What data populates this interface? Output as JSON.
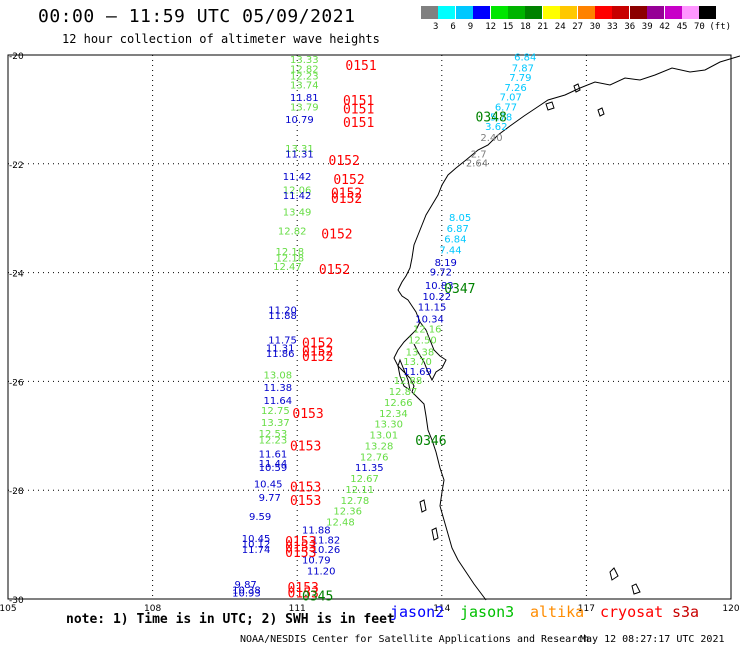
{
  "title": "00:00 – 11:59 UTC 05/09/2021",
  "subtitle": "12 hour collection of altimeter wave heights",
  "scale": {
    "colors": [
      "#808080",
      "#00ffff",
      "#00c8ff",
      "#0000ff",
      "#00e600",
      "#00b400",
      "#008200",
      "#ffff00",
      "#ffc800",
      "#ff8200",
      "#ff0000",
      "#c80000",
      "#8c0000",
      "#960096",
      "#c800c8",
      "#ff96ff",
      "#000000"
    ],
    "labels": [
      "3",
      "6",
      "9",
      "12",
      "15",
      "18",
      "21",
      "24",
      "27",
      "30",
      "33",
      "36",
      "39",
      "42",
      "45",
      "70",
      "(ft)"
    ]
  },
  "axes": {
    "lat_labels": [
      "-20",
      "-22",
      "-24",
      "-26",
      "-28",
      "-30"
    ],
    "lon_labels": [
      "105",
      "108",
      "111",
      "114",
      "117",
      "120"
    ]
  },
  "satellites": {
    "jason2": {
      "name": "jason2",
      "color": "#0000ff"
    },
    "jason3": {
      "name": "jason3",
      "color": "#00c000"
    },
    "altika": {
      "name": "altika",
      "color": "#ff8c00"
    },
    "cryosat": {
      "name": "cryosat",
      "color": "#ff0000"
    },
    "s3a": {
      "name": "s3a",
      "color": "#c80000"
    }
  },
  "note": "note: 1) Time is in UTC; 2) SWH is in feet",
  "footer_left": "NOAA/NESDIS Center for Satellite Applications and Research",
  "footer_right": "May 12 08:27:17 UTC 2021",
  "track_labels": [
    {
      "text": "0151",
      "color": "#ff0000",
      "lon": 112.0,
      "lat": -20.2
    },
    {
      "text": "0151",
      "color": "#ff0000",
      "lon": 111.95,
      "lat": -20.85
    },
    {
      "text": "0151",
      "color": "#ff0000",
      "lon": 111.95,
      "lat": -21.0
    },
    {
      "text": "0151",
      "color": "#ff0000",
      "lon": 111.95,
      "lat": -21.25
    },
    {
      "text": "0152",
      "color": "#ff0000",
      "lon": 111.65,
      "lat": -21.95
    },
    {
      "text": "0152",
      "color": "#ff0000",
      "lon": 111.75,
      "lat": -22.3
    },
    {
      "text": "0152",
      "color": "#ff0000",
      "lon": 111.7,
      "lat": -22.55
    },
    {
      "text": "0152",
      "color": "#ff0000",
      "lon": 111.7,
      "lat": -22.65
    },
    {
      "text": "0152",
      "color": "#ff0000",
      "lon": 111.5,
      "lat": -23.3
    },
    {
      "text": "0152",
      "color": "#ff0000",
      "lon": 111.45,
      "lat": -23.95
    },
    {
      "text": "0152",
      "color": "#ff0000",
      "lon": 111.1,
      "lat": -25.3
    },
    {
      "text": "0152",
      "color": "#ff0000",
      "lon": 111.1,
      "lat": -25.45
    },
    {
      "text": "0152",
      "color": "#ff0000",
      "lon": 111.1,
      "lat": -25.55
    },
    {
      "text": "0153",
      "color": "#ff0000",
      "lon": 110.9,
      "lat": -26.6
    },
    {
      "text": "0153",
      "color": "#ff0000",
      "lon": 110.85,
      "lat": -27.2
    },
    {
      "text": "0153",
      "color": "#ff0000",
      "lon": 110.85,
      "lat": -27.95
    },
    {
      "text": "0153",
      "color": "#ff0000",
      "lon": 110.85,
      "lat": -28.2
    },
    {
      "text": "0153",
      "color": "#ff0000",
      "lon": 110.75,
      "lat": -28.95
    },
    {
      "text": "0153",
      "color": "#ff0000",
      "lon": 110.75,
      "lat": -29.05
    },
    {
      "text": "0153",
      "color": "#ff0000",
      "lon": 110.75,
      "lat": -29.15
    },
    {
      "text": "0153",
      "color": "#ff0000",
      "lon": 110.8,
      "lat": -29.8
    },
    {
      "text": "0153",
      "color": "#ff0000",
      "lon": 110.8,
      "lat": -29.9
    },
    {
      "text": "0348",
      "color": "#008200",
      "lon": 114.7,
      "lat": -21.15
    },
    {
      "text": "0347",
      "color": "#008200",
      "lon": 114.05,
      "lat": -24.3
    },
    {
      "text": "0346",
      "color": "#008200",
      "lon": 113.45,
      "lat": -27.1
    },
    {
      "text": "0345",
      "color": "#008200",
      "lon": 111.1,
      "lat": -29.95
    }
  ],
  "wave_values": [
    {
      "text": "6.84",
      "color": "#00c8ff",
      "lon": 115.5,
      "lat": -20.1
    },
    {
      "text": "7.87",
      "color": "#00c8ff",
      "lon": 115.45,
      "lat": -20.3
    },
    {
      "text": "7.79",
      "color": "#00c8ff",
      "lon": 115.4,
      "lat": -20.48
    },
    {
      "text": "7.26",
      "color": "#00c8ff",
      "lon": 115.3,
      "lat": -20.66
    },
    {
      "text": "7.07",
      "color": "#00c8ff",
      "lon": 115.2,
      "lat": -20.84
    },
    {
      "text": "6.77",
      "color": "#00c8ff",
      "lon": 115.1,
      "lat": -21.02
    },
    {
      "text": "5.78",
      "color": "#00c8ff",
      "lon": 115.0,
      "lat": -21.2
    },
    {
      "text": "3.62",
      "color": "#00c8ff",
      "lon": 114.9,
      "lat": -21.38
    },
    {
      "text": "2.40",
      "color": "#808080",
      "lon": 114.8,
      "lat": -21.58
    },
    {
      "text": "2.7",
      "color": "#808080",
      "lon": 114.6,
      "lat": -21.88
    },
    {
      "text": "2.64",
      "color": "#808080",
      "lon": 114.5,
      "lat": -22.05
    },
    {
      "text": "13.33",
      "color": "#66dd44",
      "lon": 110.85,
      "lat": -20.15
    },
    {
      "text": "12.82",
      "color": "#66dd44",
      "lon": 110.85,
      "lat": -20.32
    },
    {
      "text": "12.23",
      "color": "#66dd44",
      "lon": 110.85,
      "lat": -20.45
    },
    {
      "text": "13.74",
      "color": "#66dd44",
      "lon": 110.85,
      "lat": -20.62
    },
    {
      "text": "11.81",
      "color": "#0000cc",
      "lon": 110.85,
      "lat": -20.85
    },
    {
      "text": "13.79",
      "color": "#66dd44",
      "lon": 110.85,
      "lat": -21.02
    },
    {
      "text": "10.79",
      "color": "#0000cc",
      "lon": 110.75,
      "lat": -21.25
    },
    {
      "text": "13.31",
      "color": "#66dd44",
      "lon": 110.75,
      "lat": -21.78
    },
    {
      "text": "11.31",
      "color": "#0000cc",
      "lon": 110.75,
      "lat": -21.88
    },
    {
      "text": "11.42",
      "color": "#0000cc",
      "lon": 110.7,
      "lat": -22.3
    },
    {
      "text": "12.06",
      "color": "#66dd44",
      "lon": 110.7,
      "lat": -22.55
    },
    {
      "text": "11.42",
      "color": "#0000cc",
      "lon": 110.7,
      "lat": -22.65
    },
    {
      "text": "13.49",
      "color": "#66dd44",
      "lon": 110.7,
      "lat": -22.95
    },
    {
      "text": "12.82",
      "color": "#66dd44",
      "lon": 110.6,
      "lat": -23.3
    },
    {
      "text": "12.18",
      "color": "#66dd44",
      "lon": 110.55,
      "lat": -23.68
    },
    {
      "text": "12.18",
      "color": "#66dd44",
      "lon": 110.55,
      "lat": -23.8
    },
    {
      "text": "12.47",
      "color": "#66dd44",
      "lon": 110.5,
      "lat": -23.95
    },
    {
      "text": "11.20",
      "color": "#0000cc",
      "lon": 110.4,
      "lat": -24.75
    },
    {
      "text": "11.88",
      "color": "#0000cc",
      "lon": 110.4,
      "lat": -24.85
    },
    {
      "text": "11.75",
      "color": "#0000cc",
      "lon": 110.4,
      "lat": -25.3
    },
    {
      "text": "11.31",
      "color": "#0000cc",
      "lon": 110.35,
      "lat": -25.45
    },
    {
      "text": "11.86",
      "color": "#0000cc",
      "lon": 110.35,
      "lat": -25.55
    },
    {
      "text": "13.08",
      "color": "#66dd44",
      "lon": 110.3,
      "lat": -25.95
    },
    {
      "text": "11.38",
      "color": "#0000cc",
      "lon": 110.3,
      "lat": -26.18
    },
    {
      "text": "11.64",
      "color": "#0000cc",
      "lon": 110.3,
      "lat": -26.42
    },
    {
      "text": "12.75",
      "color": "#66dd44",
      "lon": 110.25,
      "lat": -26.6
    },
    {
      "text": "13.37",
      "color": "#66dd44",
      "lon": 110.25,
      "lat": -26.82
    },
    {
      "text": "12.53",
      "color": "#66dd44",
      "lon": 110.2,
      "lat": -27.02
    },
    {
      "text": "12.23",
      "color": "#66dd44",
      "lon": 110.2,
      "lat": -27.14
    },
    {
      "text": "11.61",
      "color": "#0000cc",
      "lon": 110.2,
      "lat": -27.4
    },
    {
      "text": "11.44",
      "color": "#0000cc",
      "lon": 110.2,
      "lat": -27.57
    },
    {
      "text": "10.59",
      "color": "#0000cc",
      "lon": 110.2,
      "lat": -27.65
    },
    {
      "text": "10.45",
      "color": "#0000cc",
      "lon": 110.1,
      "lat": -27.95
    },
    {
      "text": "9.77",
      "color": "#0000cc",
      "lon": 110.2,
      "lat": -28.2
    },
    {
      "text": "9.59",
      "color": "#0000cc",
      "lon": 110.0,
      "lat": -28.55
    },
    {
      "text": "11.88",
      "color": "#0000cc",
      "lon": 111.1,
      "lat": -28.8
    },
    {
      "text": "10.45",
      "color": "#0000cc",
      "lon": 109.85,
      "lat": -28.95
    },
    {
      "text": "10.12",
      "color": "#0000cc",
      "lon": 109.85,
      "lat": -29.05
    },
    {
      "text": "11.74",
      "color": "#0000cc",
      "lon": 109.85,
      "lat": -29.15
    },
    {
      "text": "11.82",
      "color": "#0000cc",
      "lon": 111.3,
      "lat": -28.98
    },
    {
      "text": "10.26",
      "color": "#0000cc",
      "lon": 111.3,
      "lat": -29.15
    },
    {
      "text": "10.79",
      "color": "#0000cc",
      "lon": 111.1,
      "lat": -29.35
    },
    {
      "text": "11.20",
      "color": "#0000cc",
      "lon": 111.2,
      "lat": -29.55
    },
    {
      "text": "9.87",
      "color": "#0000cc",
      "lon": 109.7,
      "lat": -29.8
    },
    {
      "text": "10.38",
      "color": "#0000cc",
      "lon": 109.65,
      "lat": -29.9
    },
    {
      "text": "10.93",
      "color": "#0000cc",
      "lon": 109.65,
      "lat": -29.95
    },
    {
      "text": "8.05",
      "color": "#00c8ff",
      "lon": 114.15,
      "lat": -23.05
    },
    {
      "text": "6.87",
      "color": "#00c8ff",
      "lon": 114.1,
      "lat": -23.25
    },
    {
      "text": "6.84",
      "color": "#00c8ff",
      "lon": 114.05,
      "lat": -23.45
    },
    {
      "text": "7.44",
      "color": "#00c8ff",
      "lon": 113.95,
      "lat": -23.65
    },
    {
      "text": "8.19",
      "color": "#0000cc",
      "lon": 113.85,
      "lat": -23.88
    },
    {
      "text": "9.72",
      "color": "#0000cc",
      "lon": 113.75,
      "lat": -24.05
    },
    {
      "text": "10.83",
      "color": "#0000cc",
      "lon": 113.65,
      "lat": -24.3
    },
    {
      "text": "10.22",
      "color": "#0000cc",
      "lon": 113.6,
      "lat": -24.5
    },
    {
      "text": "11.15",
      "color": "#0000cc",
      "lon": 113.5,
      "lat": -24.7
    },
    {
      "text": "10.34",
      "color": "#0000cc",
      "lon": 113.45,
      "lat": -24.92
    },
    {
      "text": "12.16",
      "color": "#66dd44",
      "lon": 113.4,
      "lat": -25.1
    },
    {
      "text": "12.50",
      "color": "#66dd44",
      "lon": 113.3,
      "lat": -25.3
    },
    {
      "text": "13.38",
      "color": "#66dd44",
      "lon": 113.25,
      "lat": -25.52
    },
    {
      "text": "13.70",
      "color": "#66dd44",
      "lon": 113.2,
      "lat": -25.7
    },
    {
      "text": "11.69",
      "color": "#0000cc",
      "lon": 113.2,
      "lat": -25.88
    },
    {
      "text": "12.88",
      "color": "#66dd44",
      "lon": 113.0,
      "lat": -26.05
    },
    {
      "text": "12.87",
      "color": "#66dd44",
      "lon": 112.9,
      "lat": -26.25
    },
    {
      "text": "12.66",
      "color": "#66dd44",
      "lon": 112.8,
      "lat": -26.45
    },
    {
      "text": "12.34",
      "color": "#66dd44",
      "lon": 112.7,
      "lat": -26.65
    },
    {
      "text": "13.30",
      "color": "#66dd44",
      "lon": 112.6,
      "lat": -26.85
    },
    {
      "text": "13.01",
      "color": "#66dd44",
      "lon": 112.5,
      "lat": -27.05
    },
    {
      "text": "13.28",
      "color": "#66dd44",
      "lon": 112.4,
      "lat": -27.25
    },
    {
      "text": "12.76",
      "color": "#66dd44",
      "lon": 112.3,
      "lat": -27.45
    },
    {
      "text": "11.35",
      "color": "#0000cc",
      "lon": 112.2,
      "lat": -27.65
    },
    {
      "text": "12.67",
      "color": "#66dd44",
      "lon": 112.1,
      "lat": -27.85
    },
    {
      "text": "12.11",
      "color": "#66dd44",
      "lon": 112.0,
      "lat": -28.05
    },
    {
      "text": "12.78",
      "color": "#66dd44",
      "lon": 111.9,
      "lat": -28.25
    },
    {
      "text": "12.36",
      "color": "#66dd44",
      "lon": 111.75,
      "lat": -28.45
    },
    {
      "text": "12.48",
      "color": "#66dd44",
      "lon": 111.6,
      "lat": -28.65
    }
  ]
}
